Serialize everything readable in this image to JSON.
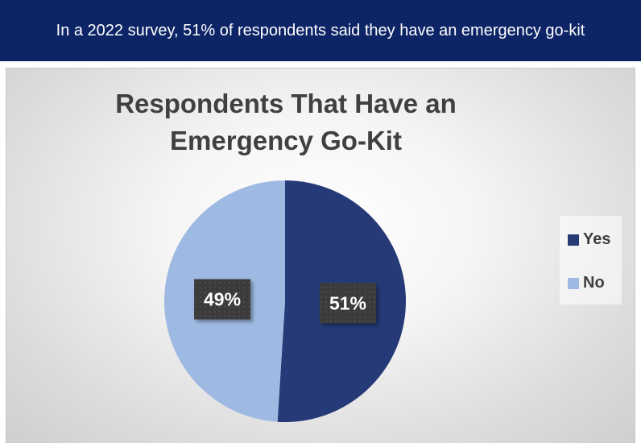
{
  "banner": {
    "text": "In a 2022 survey, 51% of respondents said they have an emergency go-kit"
  },
  "chart_data": {
    "type": "pie",
    "title": "Respondents That Have an Emergency Go-Kit",
    "categories": [
      "Yes",
      "No"
    ],
    "values": [
      51,
      49
    ],
    "data_labels": [
      "51%",
      "49%"
    ],
    "colors": [
      "#253a77",
      "#9ebae2"
    ],
    "legend": "right",
    "start_angle_deg": 0,
    "direction": "clockwise"
  },
  "colors": {
    "banner_bg": "#0d2466",
    "banner_text": "#ffffff",
    "title_text": "#404040",
    "data_label_bg": "#3a3a3a",
    "data_label_text": "#ffffff"
  }
}
